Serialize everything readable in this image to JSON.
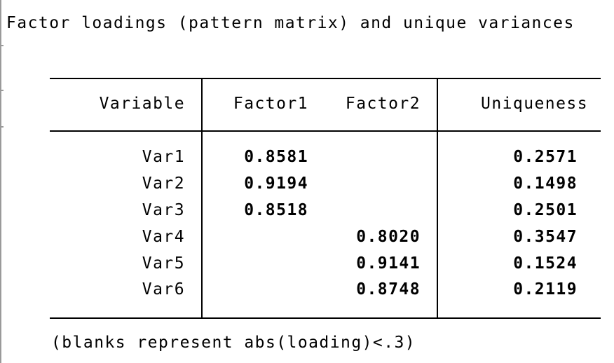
{
  "title": "Factor loadings (pattern matrix) and unique variances",
  "table": {
    "headers": {
      "variable": "Variable",
      "factor1": "Factor1",
      "factor2": "Factor2",
      "uniqueness": "Uniqueness"
    },
    "rows": [
      {
        "variable": "Var1",
        "factor1": "0.8581",
        "factor2": "",
        "uniqueness": "0.2571"
      },
      {
        "variable": "Var2",
        "factor1": "0.9194",
        "factor2": "",
        "uniqueness": "0.1498"
      },
      {
        "variable": "Var3",
        "factor1": "0.8518",
        "factor2": "",
        "uniqueness": "0.2501"
      },
      {
        "variable": "Var4",
        "factor1": "",
        "factor2": "0.8020",
        "uniqueness": "0.3547"
      },
      {
        "variable": "Var5",
        "factor1": "",
        "factor2": "0.9141",
        "uniqueness": "0.1524"
      },
      {
        "variable": "Var6",
        "factor1": "",
        "factor2": "0.8748",
        "uniqueness": "0.2119"
      }
    ]
  },
  "footnote": "(blanks represent abs(loading)<.3)"
}
